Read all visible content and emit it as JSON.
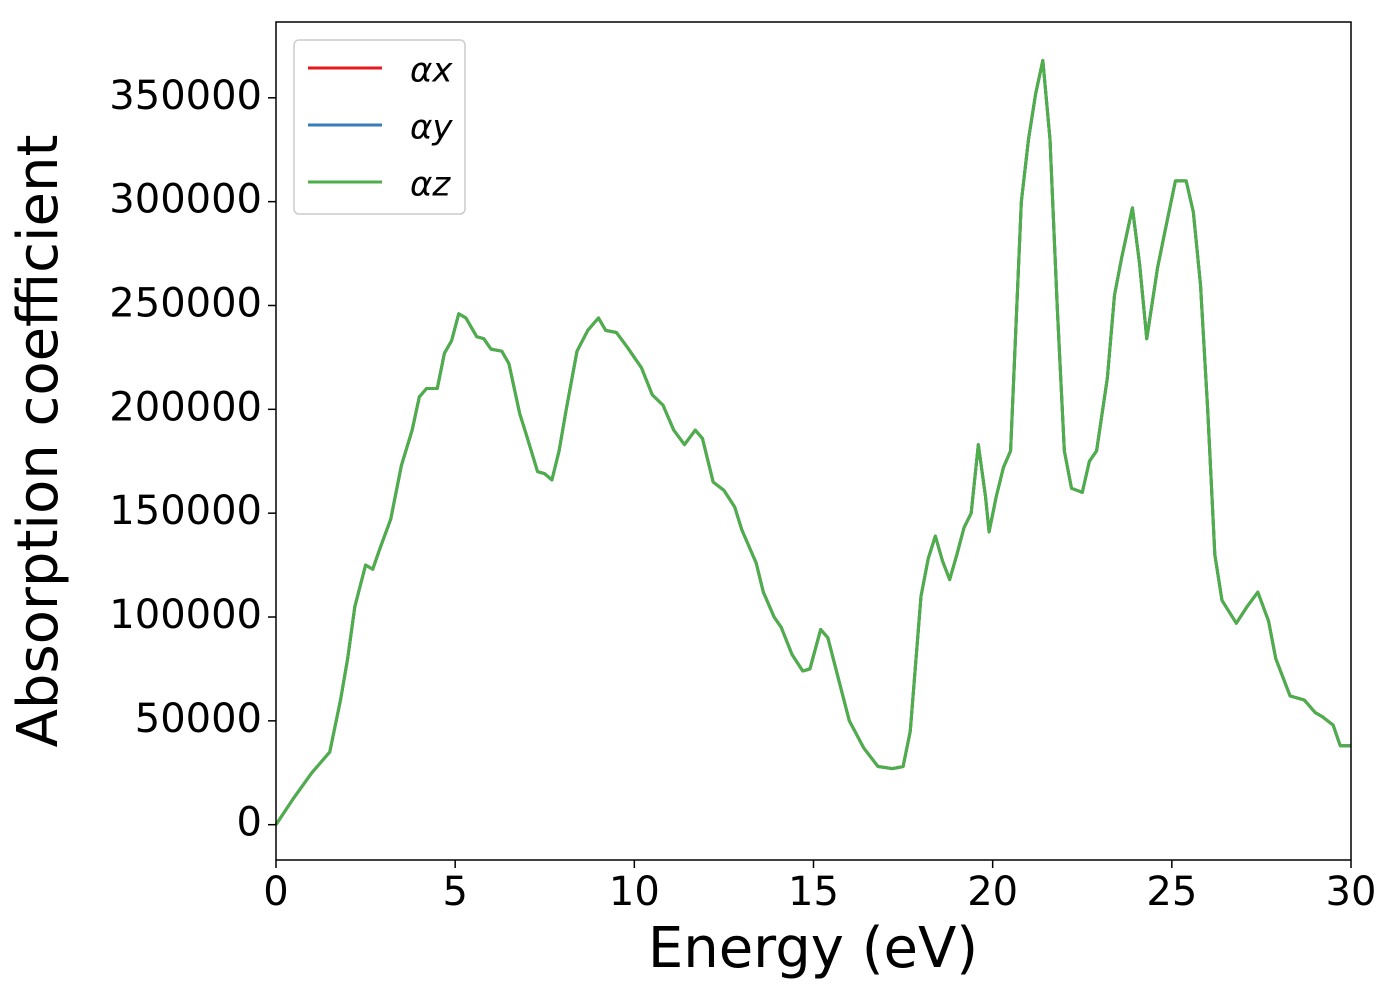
{
  "chart_data": {
    "type": "line",
    "xlabel": "Energy (eV)",
    "ylabel": "Absorption coefficient",
    "x": [
      0,
      0.5,
      1.0,
      1.3,
      1.5,
      1.8,
      2.0,
      2.2,
      2.5,
      2.7,
      2.9,
      3.2,
      3.5,
      3.8,
      4.0,
      4.2,
      4.5,
      4.7,
      4.9,
      5.1,
      5.3,
      5.6,
      5.8,
      6.0,
      6.3,
      6.5,
      6.8,
      7.0,
      7.3,
      7.5,
      7.7,
      7.9,
      8.1,
      8.4,
      8.7,
      9.0,
      9.2,
      9.5,
      9.8,
      10.2,
      10.5,
      10.8,
      11.1,
      11.4,
      11.7,
      11.9,
      12.2,
      12.5,
      12.8,
      13.0,
      13.4,
      13.6,
      13.9,
      14.1,
      14.4,
      14.7,
      14.9,
      15.2,
      15.4,
      15.7,
      16.0,
      16.4,
      16.8,
      17.2,
      17.5,
      17.7,
      18.0,
      18.2,
      18.4,
      18.6,
      18.8,
      19.0,
      19.2,
      19.4,
      19.6,
      19.8,
      19.9,
      20.1,
      20.3,
      20.5,
      20.8,
      21.0,
      21.2,
      21.4,
      21.6,
      21.8,
      22.0,
      22.2,
      22.5,
      22.7,
      22.9,
      23.2,
      23.4,
      23.6,
      23.9,
      24.1,
      24.3,
      24.6,
      24.8,
      25.1,
      25.4,
      25.6,
      25.8,
      26.0,
      26.2,
      26.4,
      26.8,
      27.1,
      27.4,
      27.7,
      27.9,
      28.3,
      28.7,
      29.0,
      29.2,
      29.5,
      29.7,
      30
    ],
    "series": [
      {
        "name": "αx",
        "color": "#e41a1c",
        "values": [
          0,
          13000,
          25000,
          31000,
          35000,
          60000,
          80000,
          105000,
          125000,
          123000,
          133000,
          147000,
          173000,
          190000,
          206000,
          210000,
          210000,
          227000,
          233000,
          246000,
          244000,
          235000,
          234000,
          229000,
          228000,
          222000,
          198000,
          187000,
          170000,
          169000,
          166000,
          180000,
          200000,
          228000,
          238000,
          244000,
          238000,
          237000,
          230000,
          220000,
          207000,
          202000,
          190000,
          183000,
          190000,
          186000,
          165000,
          161000,
          153000,
          142000,
          126000,
          112000,
          100000,
          95000,
          82000,
          74000,
          75000,
          94000,
          90000,
          70000,
          50000,
          37000,
          28000,
          27000,
          28000,
          45000,
          110000,
          128000,
          139000,
          127000,
          118000,
          130000,
          143000,
          150000,
          183000,
          158000,
          141000,
          158000,
          172000,
          180000,
          300000,
          330000,
          352000,
          368000,
          330000,
          250000,
          180000,
          162000,
          160000,
          175000,
          180000,
          215000,
          255000,
          273000,
          297000,
          270000,
          234000,
          268000,
          285000,
          310000,
          310000,
          295000,
          260000,
          200000,
          130000,
          108000,
          97000,
          105000,
          112000,
          98000,
          80000,
          62000,
          60000,
          54000,
          52000,
          48000,
          38000,
          38000
        ]
      },
      {
        "name": "αy",
        "color": "#377eb8",
        "values": [
          0,
          13000,
          25000,
          31000,
          35000,
          60000,
          80000,
          105000,
          125000,
          123000,
          133000,
          147000,
          173000,
          190000,
          206000,
          210000,
          210000,
          227000,
          233000,
          246000,
          244000,
          235000,
          234000,
          229000,
          228000,
          222000,
          198000,
          187000,
          170000,
          169000,
          166000,
          180000,
          200000,
          228000,
          238000,
          244000,
          238000,
          237000,
          230000,
          220000,
          207000,
          202000,
          190000,
          183000,
          190000,
          186000,
          165000,
          161000,
          153000,
          142000,
          126000,
          112000,
          100000,
          95000,
          82000,
          74000,
          75000,
          94000,
          90000,
          70000,
          50000,
          37000,
          28000,
          27000,
          28000,
          45000,
          110000,
          128000,
          139000,
          127000,
          118000,
          130000,
          143000,
          150000,
          183000,
          158000,
          141000,
          158000,
          172000,
          180000,
          300000,
          330000,
          352000,
          368000,
          330000,
          250000,
          180000,
          162000,
          160000,
          175000,
          180000,
          215000,
          255000,
          273000,
          297000,
          270000,
          234000,
          268000,
          285000,
          310000,
          310000,
          295000,
          260000,
          200000,
          130000,
          108000,
          97000,
          105000,
          112000,
          98000,
          80000,
          62000,
          60000,
          54000,
          52000,
          48000,
          38000,
          38000
        ]
      },
      {
        "name": "αz",
        "color": "#4daf4a",
        "values": [
          0,
          13000,
          25000,
          31000,
          35000,
          60000,
          80000,
          105000,
          125000,
          123000,
          133000,
          147000,
          173000,
          190000,
          206000,
          210000,
          210000,
          227000,
          233000,
          246000,
          244000,
          235000,
          234000,
          229000,
          228000,
          222000,
          198000,
          187000,
          170000,
          169000,
          166000,
          180000,
          200000,
          228000,
          238000,
          244000,
          238000,
          237000,
          230000,
          220000,
          207000,
          202000,
          190000,
          183000,
          190000,
          186000,
          165000,
          161000,
          153000,
          142000,
          126000,
          112000,
          100000,
          95000,
          82000,
          74000,
          75000,
          94000,
          90000,
          70000,
          50000,
          37000,
          28000,
          27000,
          28000,
          45000,
          110000,
          128000,
          139000,
          127000,
          118000,
          130000,
          143000,
          150000,
          183000,
          158000,
          141000,
          158000,
          172000,
          180000,
          300000,
          330000,
          352000,
          368000,
          330000,
          250000,
          180000,
          162000,
          160000,
          175000,
          180000,
          215000,
          255000,
          273000,
          297000,
          270000,
          234000,
          268000,
          285000,
          310000,
          310000,
          295000,
          260000,
          200000,
          130000,
          108000,
          97000,
          105000,
          112000,
          98000,
          80000,
          62000,
          60000,
          54000,
          52000,
          48000,
          38000,
          38000
        ]
      }
    ],
    "xlim": [
      0,
      30
    ],
    "xticks": [
      0,
      5,
      10,
      15,
      20,
      25,
      30
    ],
    "ylim": [
      -17000,
      386500
    ],
    "yticks": [
      0,
      50000,
      100000,
      150000,
      200000,
      250000,
      300000,
      350000
    ],
    "grid": false,
    "legend": "upper left"
  }
}
